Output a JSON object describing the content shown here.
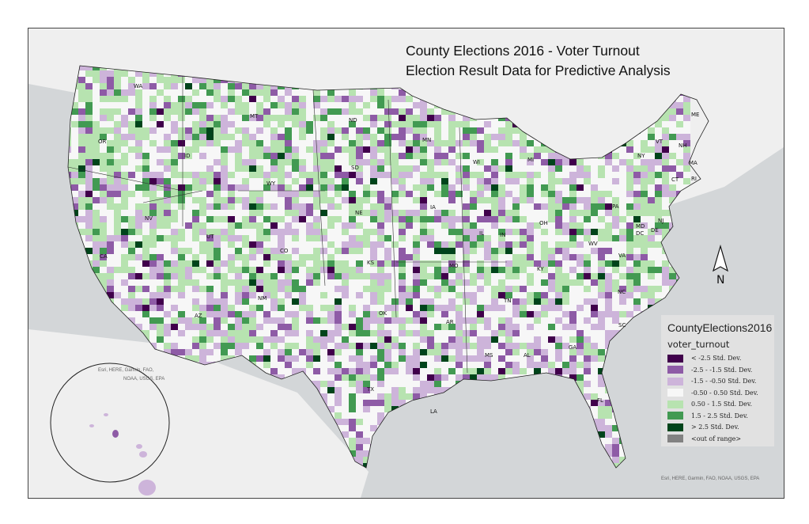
{
  "title": {
    "line1": "County Elections 2016 - Voter Turnout",
    "line2": "Election Result Data for Predictive Analysis"
  },
  "legend": {
    "layer": "CountyElections2016",
    "field": "voter_turnout",
    "classes": [
      {
        "label": "< -2.5 Std. Dev.",
        "color": "#40004b"
      },
      {
        "label": "-2.5 - -1.5 Std. Dev.",
        "color": "#8e5ba6"
      },
      {
        "label": "-1.5 - -0.50 Std. Dev.",
        "color": "#cdb4da"
      },
      {
        "label": "-0.50 - 0.50 Std. Dev.",
        "color": "#f7f7f7"
      },
      {
        "label": "0.50 - 1.5 Std. Dev.",
        "color": "#b7e3b0"
      },
      {
        "label": "1.5 - 2.5 Std. Dev.",
        "color": "#429a52"
      },
      {
        "label": "> 2.5 Std. Dev.",
        "color": "#00441b"
      },
      {
        "label": "<out of range>",
        "color": "#828282"
      }
    ]
  },
  "attribution": {
    "main": "Esri, HERE, Garmin, FAO, NOAA, USGS, EPA",
    "inset_line1": "Esri, HERE, Garmin, FAO,",
    "inset_line2": "NOAA, USGS, EPA"
  },
  "north_arrow": {
    "label": "N"
  },
  "state_labels": [
    "WA",
    "OR",
    "CA",
    "NV",
    "ID",
    "MT",
    "WY",
    "UT",
    "CO",
    "AZ",
    "NM",
    "ND",
    "SD",
    "NE",
    "KS",
    "OK",
    "TX",
    "MN",
    "IA",
    "MO",
    "AR",
    "LA",
    "WI",
    "IL",
    "MI",
    "IN",
    "OH",
    "KY",
    "TN",
    "MS",
    "AL",
    "GA",
    "FL",
    "SC",
    "NC",
    "VA",
    "WV",
    "PA",
    "NY",
    "VT",
    "NH",
    "ME",
    "MA",
    "CT",
    "RI",
    "NJ",
    "DE",
    "MD",
    "DC"
  ],
  "colors": {
    "ocean": "#d3d6d8",
    "land": "#efefef"
  }
}
